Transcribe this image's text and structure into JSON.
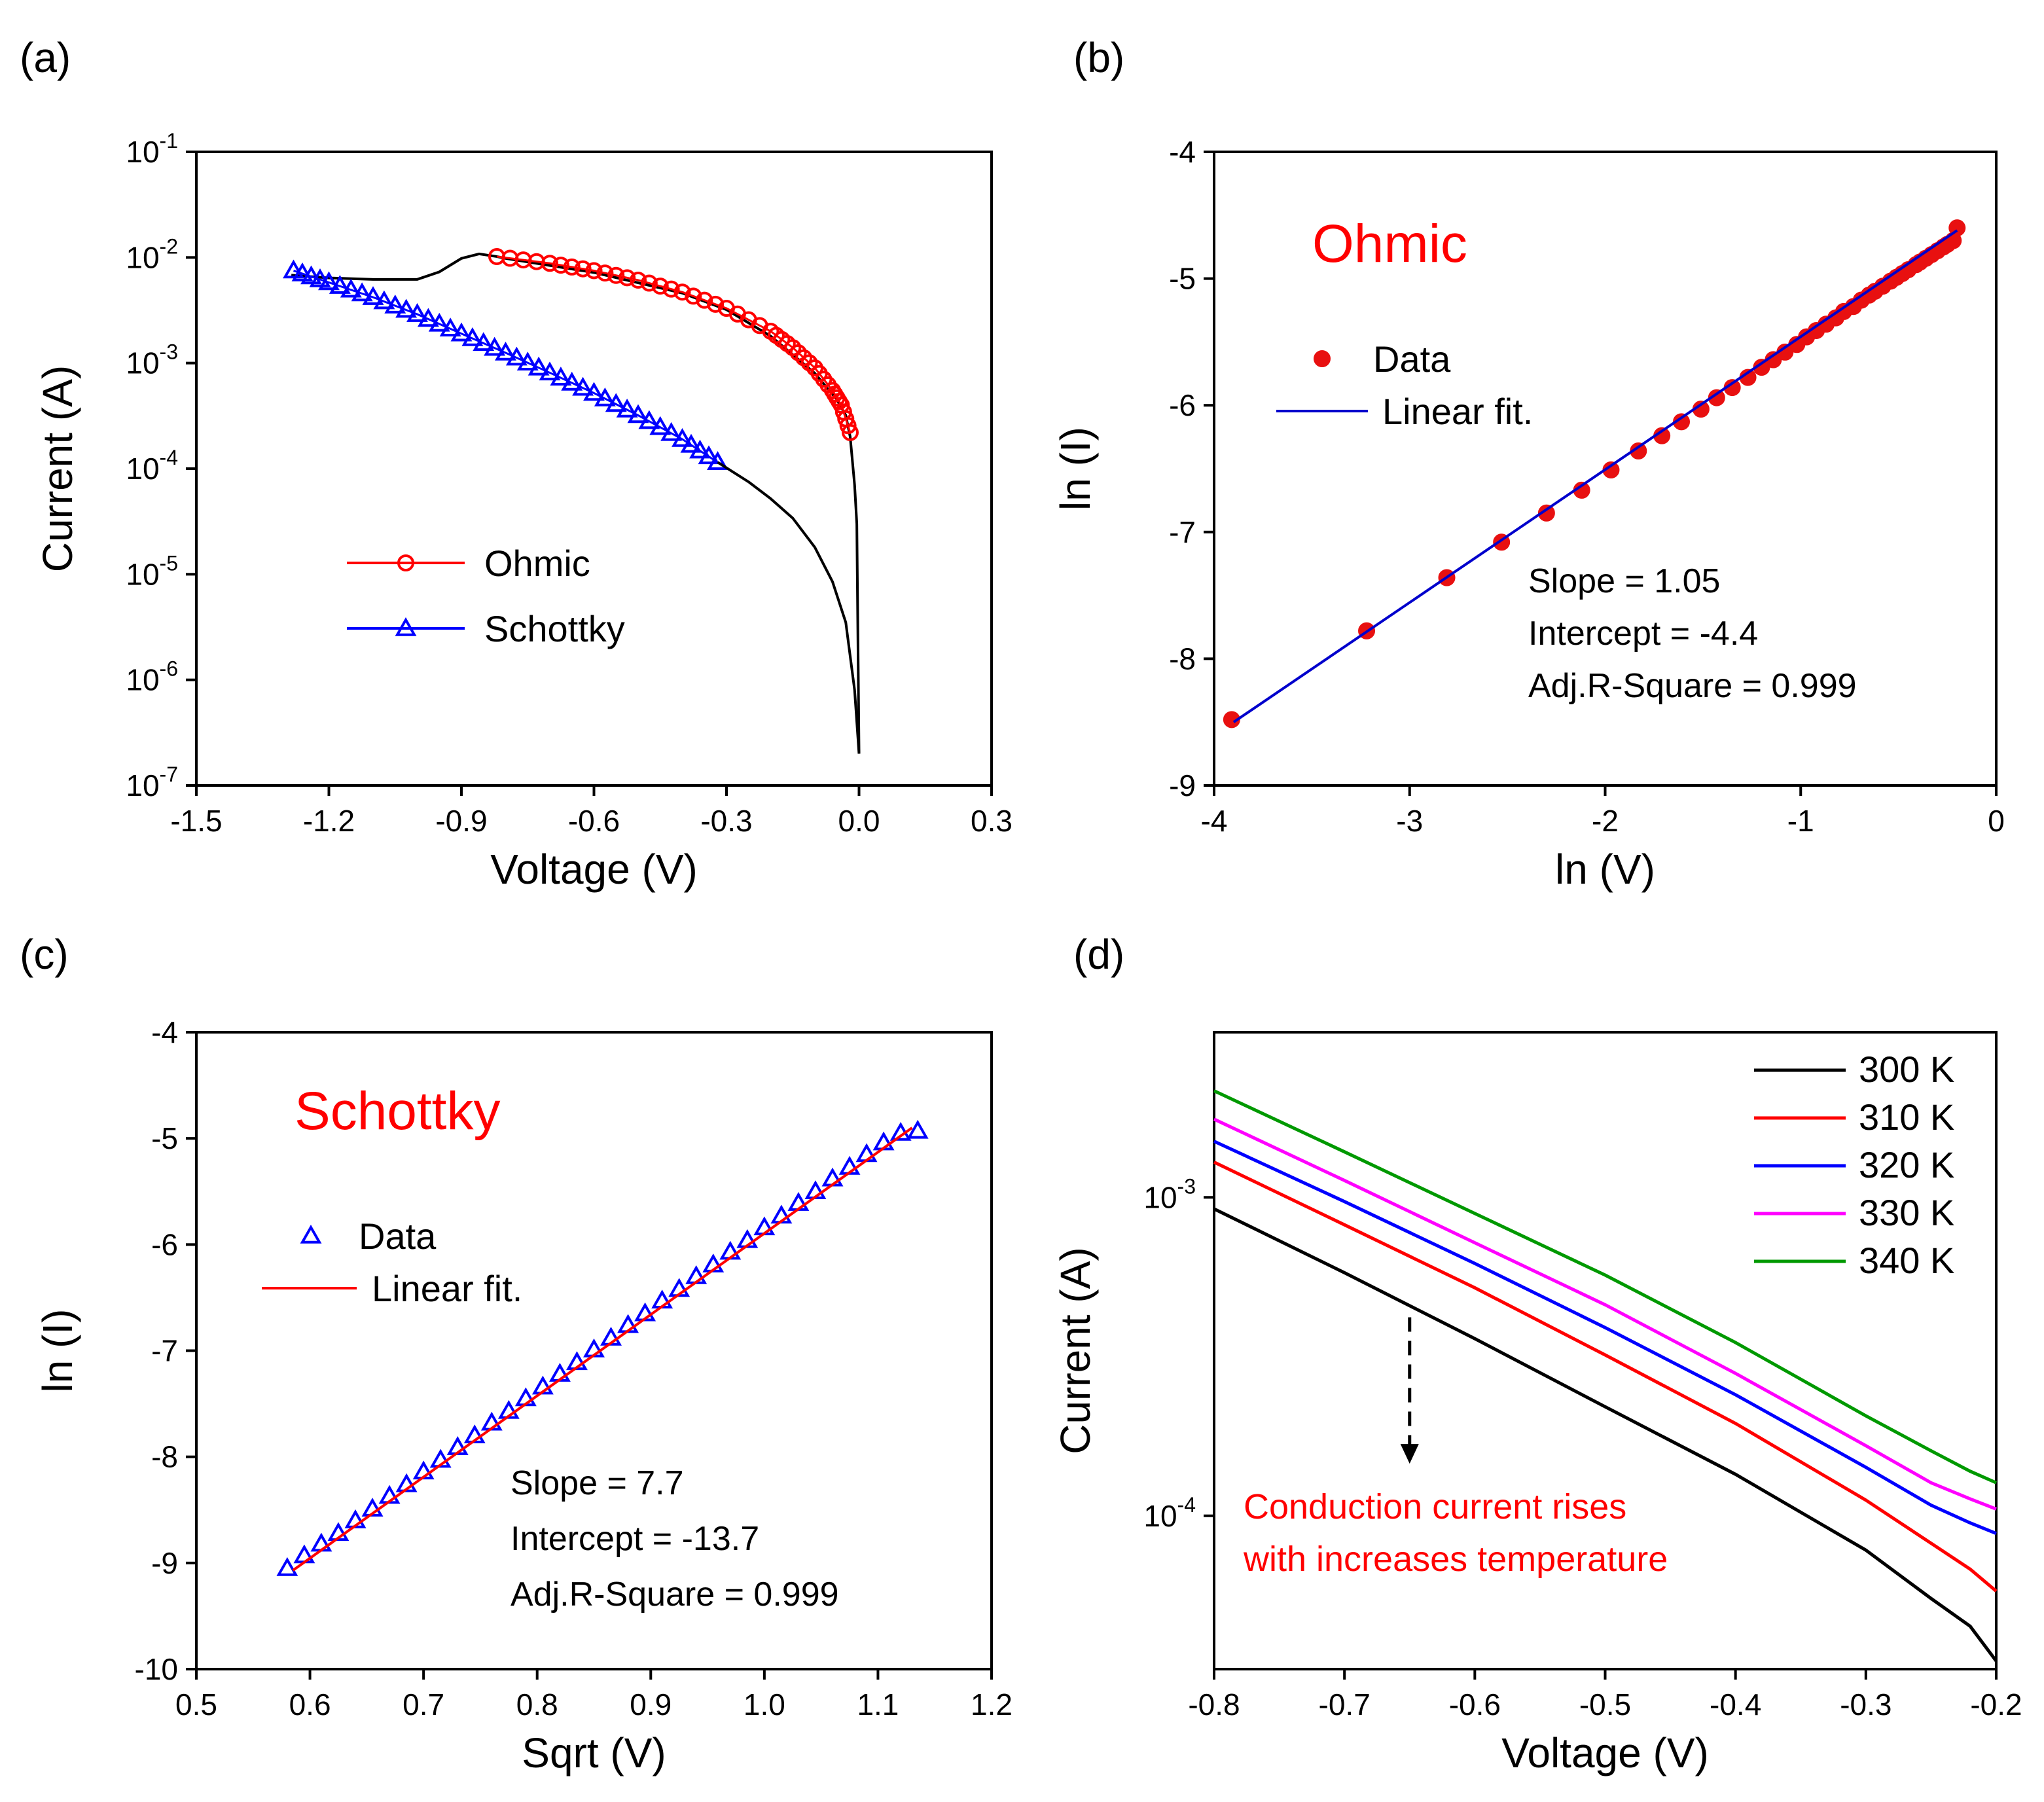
{
  "panel_labels": [
    "(a)",
    "(b)",
    "(c)",
    "(d)"
  ],
  "chart_data": [
    {
      "id": "a",
      "type": "line",
      "xlabel": "Voltage (V)",
      "ylabel": "Current (A)",
      "xlim": [
        -1.5,
        0.3
      ],
      "xticks": [
        -1.5,
        -1.2,
        -0.9,
        -0.6,
        -0.3,
        0.0,
        0.3
      ],
      "xtick_labels": [
        "-1.5",
        "-1.2",
        "-0.9",
        "-0.6",
        "-0.3",
        "0.0",
        "0.3"
      ],
      "yscale": "log",
      "ylim_exp": [
        -7,
        -1
      ],
      "yticks_exp": [
        -7,
        -6,
        -5,
        -4,
        -3,
        -2,
        -1
      ],
      "ytick_mant": "10",
      "ytick_exps": [
        "-7",
        "-6",
        "-5",
        "-4",
        "-3",
        "-2",
        "-1"
      ],
      "legend": {
        "position": "lower-center",
        "entries": [
          "Ohmic",
          "Schottky"
        ]
      },
      "series": [
        {
          "name": "I-V curve",
          "color": "#000000",
          "marker": "none",
          "x": [
            -1.285,
            -1.2,
            -1.1,
            -1.0,
            -0.95,
            -0.9,
            -0.86,
            -0.82,
            -0.8,
            -0.6,
            -0.4,
            -0.3,
            -0.2,
            -0.1,
            -0.05,
            -0.03,
            -0.02,
            -0.01,
            -0.005,
            0.0
          ],
          "y": [
            0.0068,
            0.0064,
            0.0062,
            0.0062,
            0.0073,
            0.0098,
            0.0108,
            0.0102,
            0.0098,
            0.0072,
            0.0046,
            0.0032,
            0.0018,
            0.0008,
            0.00045,
            0.00032,
            0.0002,
            7e-05,
            3e-05,
            2e-07
          ]
        },
        {
          "name": "Schottky",
          "color": "#0000ff",
          "marker": "triangle",
          "x": [
            -1.28,
            -1.2,
            -1.1,
            -1.0,
            -0.9,
            -0.8,
            -0.7,
            -0.6,
            -0.5,
            -0.4,
            -0.32
          ],
          "y": [
            0.0075,
            0.0058,
            0.0042,
            0.0029,
            0.0019,
            0.00125,
            0.00081,
            0.00052,
            0.00032,
            0.00019,
            0.000115
          ]
        },
        {
          "name": "Ohmic",
          "color": "#ff0000",
          "marker": "circle",
          "x": [
            -0.82,
            -0.7,
            -0.6,
            -0.5,
            -0.4,
            -0.3,
            -0.2,
            -0.15,
            -0.1,
            -0.06,
            -0.04,
            -0.02
          ],
          "y": [
            0.0102,
            0.0088,
            0.0075,
            0.0061,
            0.0047,
            0.0033,
            0.002,
            0.0014,
            0.0009,
            0.00055,
            0.0004,
            0.00022
          ]
        },
        {
          "name": "Schottky-tail",
          "color": "#000000",
          "marker": "none",
          "x": [
            -0.32,
            -0.25,
            -0.2,
            -0.15,
            -0.1,
            -0.06,
            -0.03,
            -0.01,
            0.0
          ],
          "y": [
            0.000115,
            7.5e-05,
            5.2e-05,
            3.4e-05,
            1.8e-05,
            8.5e-06,
            3.5e-06,
            8e-07,
            2e-07
          ]
        }
      ]
    },
    {
      "id": "b",
      "type": "scatter",
      "xlabel": "ln (V)",
      "ylabel": "ln (I)",
      "xlim": [
        -4,
        0
      ],
      "xticks": [
        -4,
        -3,
        -2,
        -1,
        0
      ],
      "xtick_labels": [
        "-4",
        "-3",
        "-2",
        "-1",
        "0"
      ],
      "ylim": [
        -9,
        -4
      ],
      "yticks": [
        -9,
        -8,
        -7,
        -6,
        -5,
        -4
      ],
      "ytick_labels": [
        "-9",
        "-8",
        "-7",
        "-6",
        "-5",
        "-4"
      ],
      "title_annotation": "Ohmic",
      "legend": {
        "position": "upper-left",
        "entries": [
          "Data",
          "Linear fit."
        ]
      },
      "fit_text": [
        "Slope = 1.05",
        "Intercept = -4.4",
        "Adj.R-Square = 0.999"
      ],
      "data": {
        "x": [
          -3.91,
          -3.22,
          -2.81,
          -2.53,
          -2.3,
          -2.12,
          -1.97,
          -1.83,
          -1.71,
          -1.61,
          -1.51,
          -1.43,
          -1.35,
          -1.27,
          -1.2,
          -1.14,
          -1.08,
          -1.02,
          -0.97,
          -0.92,
          -0.87,
          -0.82,
          -0.78,
          -0.73,
          -0.69,
          -0.65,
          -0.62,
          -0.58,
          -0.54,
          -0.51,
          -0.48,
          -0.45,
          -0.41,
          -0.39,
          -0.36,
          -0.33,
          -0.3,
          -0.27,
          -0.25,
          -0.22,
          -0.2
        ],
        "y": [
          -8.48,
          -7.78,
          -7.36,
          -7.08,
          -6.85,
          -6.67,
          -6.51,
          -6.36,
          -6.24,
          -6.13,
          -6.03,
          -5.94,
          -5.86,
          -5.78,
          -5.7,
          -5.64,
          -5.58,
          -5.52,
          -5.46,
          -5.41,
          -5.36,
          -5.31,
          -5.26,
          -5.22,
          -5.17,
          -5.13,
          -5.1,
          -5.06,
          -5.02,
          -4.99,
          -4.96,
          -4.93,
          -4.89,
          -4.87,
          -4.84,
          -4.81,
          -4.78,
          -4.75,
          -4.73,
          -4.7,
          -4.6
        ]
      },
      "fit": {
        "x": [
          -3.9,
          -0.2
        ],
        "y": [
          -8.5,
          -4.62
        ]
      }
    },
    {
      "id": "c",
      "type": "scatter",
      "xlabel": "Sqrt (V)",
      "ylabel": "ln (I)",
      "xlim": [
        0.5,
        1.2
      ],
      "xticks": [
        0.5,
        0.6,
        0.7,
        0.8,
        0.9,
        1.0,
        1.1,
        1.2
      ],
      "xtick_labels": [
        "0.5",
        "0.6",
        "0.7",
        "0.8",
        "0.9",
        "1.0",
        "1.1",
        "1.2"
      ],
      "ylim": [
        -10,
        -4
      ],
      "yticks": [
        -10,
        -9,
        -8,
        -7,
        -6,
        -5,
        -4
      ],
      "ytick_labels": [
        "-10",
        "-9",
        "-8",
        "-7",
        "-6",
        "-5",
        "-4"
      ],
      "title_annotation": "Schottky",
      "legend": {
        "position": "upper-left",
        "entries": [
          "Data",
          "Linear fit."
        ]
      },
      "fit_text": [
        "Slope = 7.7",
        "Intercept = -13.7",
        "Adj.R-Square = 0.999"
      ],
      "data": {
        "x": [
          0.58,
          0.595,
          0.61,
          0.625,
          0.64,
          0.655,
          0.67,
          0.685,
          0.7,
          0.715,
          0.73,
          0.745,
          0.76,
          0.775,
          0.79,
          0.805,
          0.82,
          0.835,
          0.85,
          0.865,
          0.88,
          0.895,
          0.91,
          0.925,
          0.94,
          0.955,
          0.97,
          0.985,
          1.0,
          1.015,
          1.03,
          1.045,
          1.06,
          1.075,
          1.09,
          1.105,
          1.12,
          1.135
        ],
        "y": [
          -9.05,
          -8.93,
          -8.82,
          -8.72,
          -8.6,
          -8.49,
          -8.37,
          -8.26,
          -8.14,
          -8.03,
          -7.91,
          -7.8,
          -7.68,
          -7.57,
          -7.45,
          -7.34,
          -7.22,
          -7.11,
          -6.99,
          -6.88,
          -6.76,
          -6.65,
          -6.53,
          -6.42,
          -6.3,
          -6.19,
          -6.07,
          -5.96,
          -5.84,
          -5.73,
          -5.61,
          -5.5,
          -5.38,
          -5.27,
          -5.15,
          -5.04,
          -4.95,
          -4.93
        ]
      },
      "fit": {
        "x": [
          0.585,
          1.13
        ],
        "y": [
          -9.07,
          -4.9
        ]
      }
    },
    {
      "id": "d",
      "type": "line",
      "xlabel": "Voltage (V)",
      "ylabel": "Current (A)",
      "xlim": [
        -0.8,
        -0.2
      ],
      "xticks": [
        -0.8,
        -0.7,
        -0.6,
        -0.5,
        -0.4,
        -0.3,
        -0.2
      ],
      "xtick_labels": [
        "-0.8",
        "-0.7",
        "-0.6",
        "-0.5",
        "-0.4",
        "-0.3",
        "-0.2"
      ],
      "yscale": "log",
      "ylim": [
        3.3e-05,
        0.0033
      ],
      "yticks_exp": [
        -4,
        -3
      ],
      "ytick_mant": "10",
      "ytick_exps": [
        "-4",
        "-3"
      ],
      "legend": {
        "position": "top-right",
        "entries": [
          "300 K",
          "310 K",
          "320 K",
          "330 K",
          "340 K"
        ]
      },
      "annotation": [
        "Conduction current rises",
        "with increases  temperature"
      ],
      "annotation_arrow": {
        "x": -0.65,
        "from_current": 0.00042,
        "to_current": 0.00015
      },
      "x": [
        -0.8,
        -0.7,
        -0.6,
        -0.5,
        -0.4,
        -0.3,
        -0.25,
        -0.22,
        -0.2
      ],
      "series": [
        {
          "name": "300 K",
          "color": "#000000",
          "values": [
            0.00092,
            0.00058,
            0.00036,
            0.00022,
            0.000135,
            7.8e-05,
            5.5e-05,
            4.5e-05,
            3.5e-05
          ]
        },
        {
          "name": "310 K",
          "color": "#ff0000",
          "values": [
            0.00129,
            0.00082,
            0.00052,
            0.00032,
            0.000195,
            0.000112,
            8.2e-05,
            6.8e-05,
            5.8e-05
          ]
        },
        {
          "name": "320 K",
          "color": "#0000ff",
          "values": [
            0.0015,
            0.00097,
            0.00062,
            0.00039,
            0.00024,
            0.000142,
            0.000108,
            9.5e-05,
            8.8e-05
          ]
        },
        {
          "name": "330 K",
          "color": "#ff00ff",
          "values": [
            0.00176,
            0.00113,
            0.00072,
            0.00046,
            0.00028,
            0.000166,
            0.000127,
            0.000113,
            0.000105
          ]
        },
        {
          "name": "340 K",
          "color": "#009900",
          "values": [
            0.00216,
            0.00139,
            0.00089,
            0.00057,
            0.00035,
            0.000206,
            0.00016,
            0.000138,
            0.000127
          ]
        }
      ]
    }
  ]
}
